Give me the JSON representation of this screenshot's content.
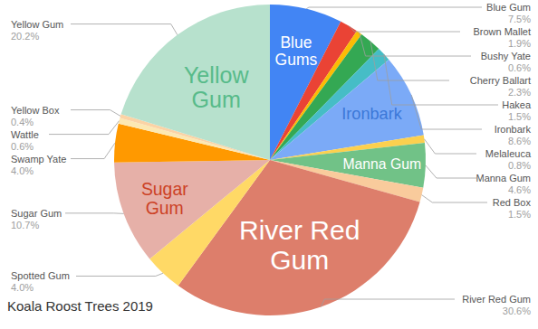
{
  "chart_data": {
    "type": "pie",
    "title": "Koala Roost Trees 2019",
    "categories": [
      "Blue Gum",
      "Brown Mallet",
      "Bushy Yate",
      "Cherry Ballart",
      "Hakea",
      "Ironbark",
      "Melaleuca",
      "Manna Gum",
      "Red Box",
      "River Red Gum",
      "Spotted Gum",
      "Sugar Gum",
      "Swamp Yate",
      "Wattle",
      "Yellow Box",
      "Yellow Gum"
    ],
    "values": [
      7.5,
      1.9,
      0.6,
      2.3,
      1.5,
      8.6,
      0.8,
      4.6,
      1.5,
      30.6,
      4.0,
      10.7,
      4.0,
      0.6,
      0.4,
      20.2
    ],
    "value_labels": [
      "7.5%",
      "1.9%",
      "0.6%",
      "2.3%",
      "1.5%",
      "8.6%",
      "0.8%",
      "4.6%",
      "1.5%",
      "30.6%",
      "4.0%",
      "10.7%",
      "4.0%",
      "0.6%",
      "0.4%",
      "20.2%"
    ],
    "colors": [
      "#4285f4",
      "#ea4335",
      "#fbbc04",
      "#34a853",
      "#46bdc6",
      "#7baaf7",
      "#fcd04f",
      "#71c287",
      "#f9cb9c",
      "#dd7e6b",
      "#ffd966",
      "#e6b0a8",
      "#ff9900",
      "#fce8b2",
      "#fbd3a5",
      "#b7e1cd"
    ],
    "slice_labels": [
      "Blue Gums",
      null,
      null,
      null,
      null,
      "Ironbark",
      null,
      "Manna Gum",
      null,
      "River Red Gum",
      null,
      "Sugar Gum",
      null,
      null,
      null,
      "Yellow Gum"
    ],
    "data_labels": true
  }
}
